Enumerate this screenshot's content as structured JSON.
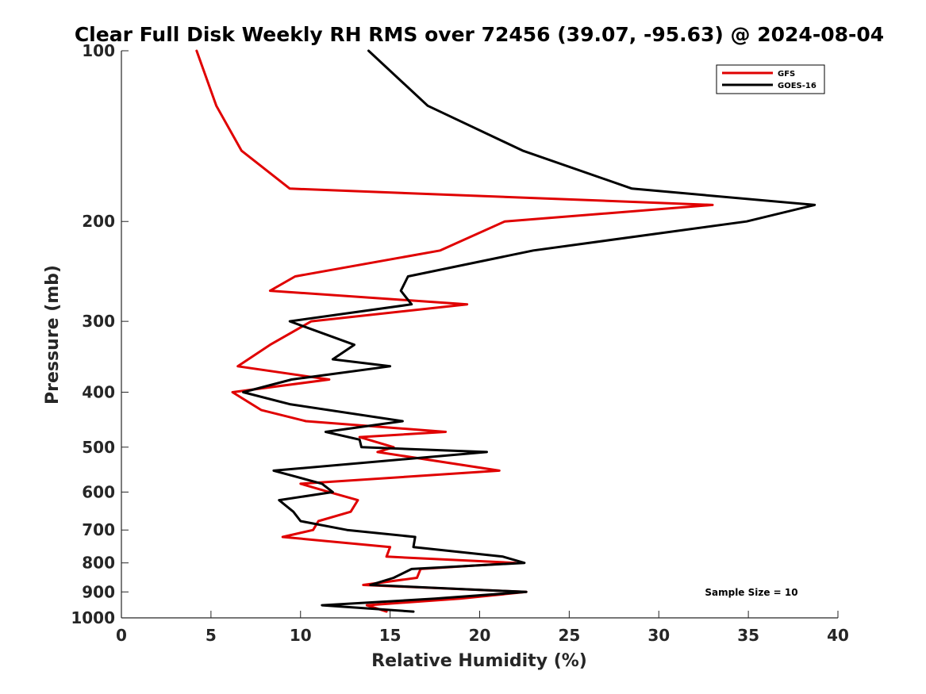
{
  "chart_data": {
    "type": "line",
    "title": "Clear Full Disk Weekly RH RMS over 72456 (39.07, -95.63) @ 2024-08-04",
    "xlabel": "Relative Humidity (%)",
    "ylabel": "Pressure (mb)",
    "xlim": [
      0,
      40
    ],
    "ylim": [
      100,
      1000
    ],
    "yscale": "log",
    "yreversed": true,
    "xticks": [
      0,
      5,
      10,
      15,
      20,
      25,
      30,
      35,
      40
    ],
    "yticks": [
      100,
      200,
      300,
      400,
      500,
      600,
      700,
      800,
      900,
      1000
    ],
    "grid": false,
    "legend_position": "top-right",
    "annotation": "Sample Size = 10",
    "series": [
      {
        "name": "GFS",
        "color": "#e00000",
        "pressure": [
          100,
          125,
          150,
          175,
          187,
          200,
          225,
          250,
          265,
          280,
          300,
          330,
          360,
          380,
          400,
          430,
          450,
          470,
          480,
          500,
          510,
          550,
          580,
          600,
          620,
          650,
          675,
          700,
          720,
          750,
          780,
          800,
          820,
          850,
          875,
          900,
          925,
          950,
          975
        ],
        "values": [
          4.2,
          5.3,
          6.7,
          9.4,
          33.0,
          21.4,
          17.8,
          9.7,
          8.3,
          19.3,
          10.6,
          8.3,
          6.5,
          11.6,
          6.2,
          7.8,
          10.3,
          18.1,
          13.3,
          15.2,
          14.3,
          21.1,
          10.0,
          11.6,
          13.2,
          12.8,
          11.0,
          10.7,
          9.0,
          15.0,
          14.8,
          22.0,
          16.7,
          16.5,
          13.5,
          22.6,
          18.9,
          13.7,
          14.8
        ]
      },
      {
        "name": "GOES-16",
        "color": "#000000",
        "pressure": [
          100,
          125,
          150,
          175,
          187,
          200,
          225,
          250,
          265,
          280,
          300,
          330,
          350,
          360,
          380,
          400,
          420,
          450,
          470,
          485,
          500,
          510,
          550,
          580,
          600,
          620,
          650,
          675,
          700,
          720,
          750,
          780,
          800,
          820,
          850,
          875,
          900,
          925,
          950,
          975
        ],
        "values": [
          13.8,
          17.1,
          22.4,
          28.5,
          38.7,
          34.9,
          23.0,
          16.0,
          15.6,
          16.2,
          9.4,
          13.0,
          11.8,
          15.0,
          9.5,
          6.8,
          9.4,
          15.7,
          11.4,
          13.3,
          13.4,
          20.4,
          8.5,
          11.2,
          11.8,
          8.8,
          9.6,
          10.0,
          12.6,
          16.4,
          16.3,
          21.3,
          22.5,
          16.2,
          15.2,
          13.9,
          22.6,
          17.5,
          11.2,
          16.3
        ]
      }
    ]
  }
}
